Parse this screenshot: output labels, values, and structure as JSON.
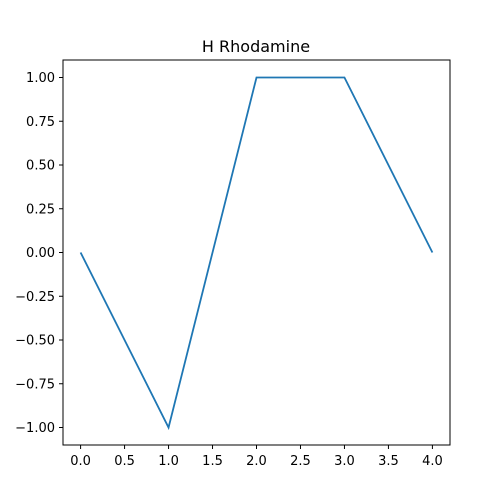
{
  "chart_data": {
    "type": "line",
    "title": "H Rhodamine",
    "xlabel": "",
    "ylabel": "",
    "xlim": [
      -0.2,
      4.2
    ],
    "ylim": [
      -1.1,
      1.1
    ],
    "x_ticks": [
      0.0,
      0.5,
      1.0,
      1.5,
      2.0,
      2.5,
      3.0,
      3.5,
      4.0
    ],
    "x_tick_labels": [
      "0.0",
      "0.5",
      "1.0",
      "1.5",
      "2.0",
      "2.5",
      "3.0",
      "3.5",
      "4.0"
    ],
    "y_ticks": [
      1.0,
      0.75,
      0.5,
      0.25,
      0.0,
      -0.25,
      -0.5,
      -0.75,
      -1.0
    ],
    "y_tick_labels": [
      "1.00",
      "0.75",
      "0.50",
      "0.25",
      "0.00",
      "−0.25",
      "−0.50",
      "−0.75",
      "−1.00"
    ],
    "grid": false,
    "series": [
      {
        "x": [
          0,
          1,
          2,
          3,
          4
        ],
        "y": [
          0,
          -1,
          1,
          1,
          0
        ],
        "color": "#1f77b4"
      }
    ]
  }
}
